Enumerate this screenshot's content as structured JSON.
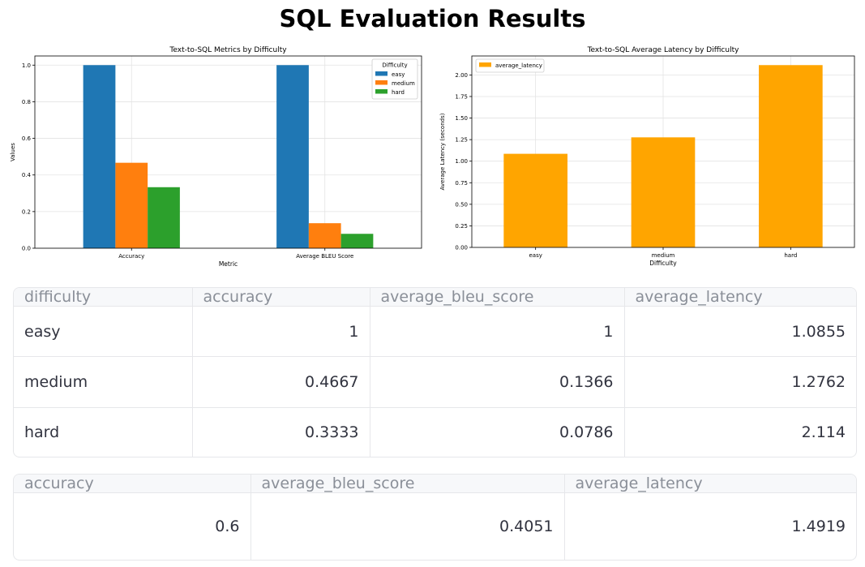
{
  "page_title": "SQL Evaluation Results",
  "chart_data": [
    {
      "type": "bar",
      "title": "Text-to-SQL Metrics by Difficulty",
      "xlabel": "Metric",
      "ylabel": "Values",
      "categories": [
        "Accuracy",
        "Average BLEU Score"
      ],
      "series": [
        {
          "name": "easy",
          "color": "#1f77b4",
          "values": [
            1.0,
            1.0
          ]
        },
        {
          "name": "medium",
          "color": "#ff7f0e",
          "values": [
            0.4667,
            0.1366
          ]
        },
        {
          "name": "hard",
          "color": "#2ca02c",
          "values": [
            0.3333,
            0.0786
          ]
        }
      ],
      "ylim": [
        0,
        1.05
      ],
      "yticks": [
        "0.0",
        "0.2",
        "0.4",
        "0.6",
        "0.8",
        "1.0"
      ],
      "legend_title": "Difficulty",
      "legend_position": "upper right",
      "grid": true
    },
    {
      "type": "bar",
      "title": "Text-to-SQL Average Latency by Difficulty",
      "xlabel": "Difficulty",
      "ylabel": "Average Latency (seconds)",
      "categories": [
        "easy",
        "medium",
        "hard"
      ],
      "series": [
        {
          "name": "average_latency",
          "color": "#ffa500",
          "values": [
            1.0855,
            1.2762,
            2.114
          ]
        }
      ],
      "ylim": [
        0,
        2.22
      ],
      "yticks": [
        "0.00",
        "0.25",
        "0.50",
        "0.75",
        "1.00",
        "1.25",
        "1.50",
        "1.75",
        "2.00"
      ],
      "legend_position": "upper left",
      "grid": true
    }
  ],
  "difficulty_table": {
    "columns": [
      "difficulty",
      "accuracy",
      "average_bleu_score",
      "average_latency"
    ],
    "rows": [
      [
        "easy",
        "1",
        "1",
        "1.0855"
      ],
      [
        "medium",
        "0.4667",
        "0.1366",
        "1.2762"
      ],
      [
        "hard",
        "0.3333",
        "0.0786",
        "2.114"
      ]
    ]
  },
  "overall_table": {
    "columns": [
      "accuracy",
      "average_bleu_score",
      "average_latency"
    ],
    "rows": [
      [
        "0.6",
        "0.4051",
        "1.4919"
      ]
    ]
  }
}
